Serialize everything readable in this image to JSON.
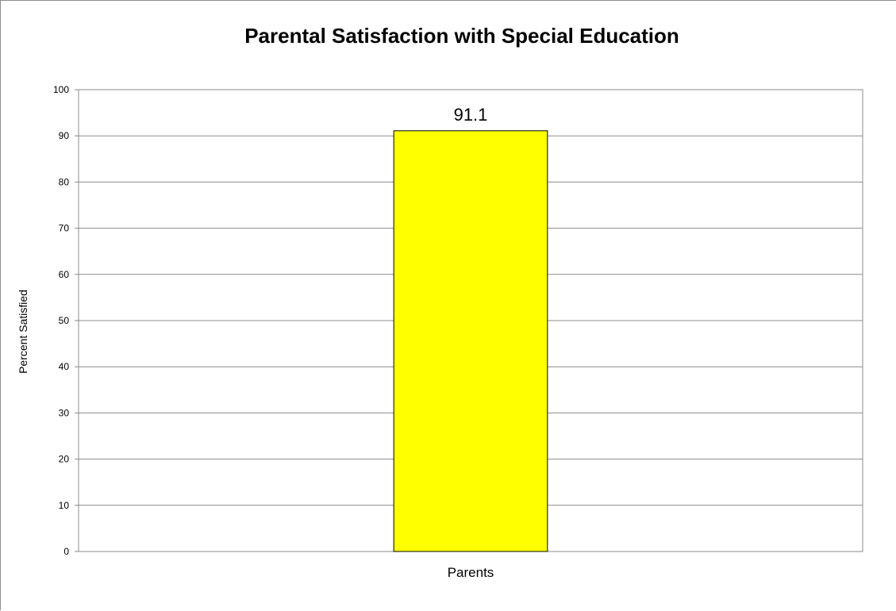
{
  "chart_data": {
    "type": "bar",
    "title": "Parental Satisfaction with Special Education",
    "xlabel": "",
    "ylabel": "Percent Satisfied",
    "categories": [
      "Parents"
    ],
    "series": [
      {
        "values": [
          91.1
        ]
      }
    ],
    "data_labels": [
      "91.1"
    ],
    "ylim": [
      0,
      100
    ],
    "yticks": [
      0,
      10,
      20,
      30,
      40,
      50,
      60,
      70,
      80,
      90,
      100
    ],
    "ytick_labels": [
      "0",
      "10",
      "20",
      "30",
      "40",
      "50",
      "60",
      "70",
      "80",
      "90",
      "100"
    ],
    "grid": true,
    "legend": "none",
    "colors": {
      "bar_fill": "#ffff00",
      "bar_stroke": "#000000",
      "gridline": "#8c8c8c",
      "axis": "#8c8c8c",
      "plot_border": "#8c8c8c"
    }
  }
}
